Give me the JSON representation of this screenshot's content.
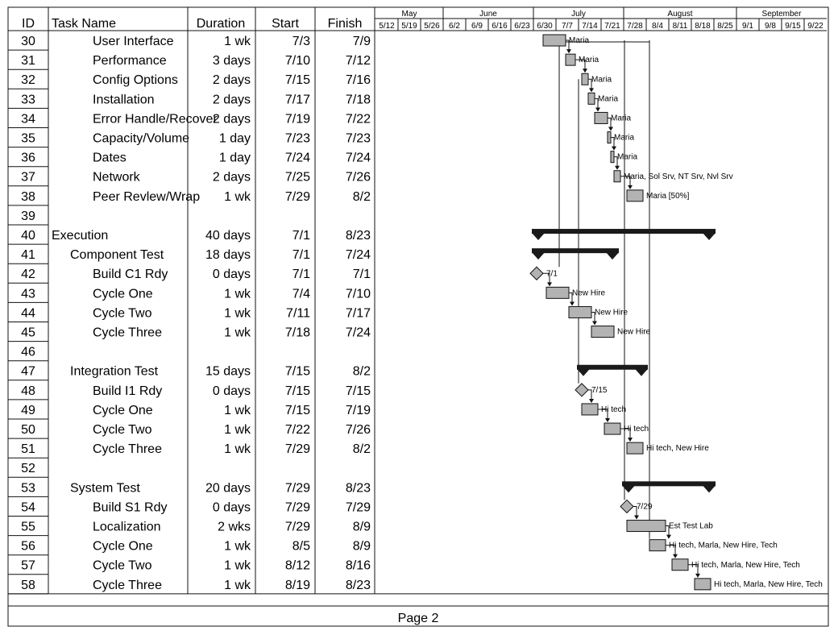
{
  "columns": {
    "id": "ID",
    "name": "Task Name",
    "duration": "Duration",
    "start": "Start",
    "finish": "Finish"
  },
  "timeline": {
    "months": [
      "May",
      "June",
      "July",
      "August",
      "September"
    ],
    "weeks": [
      "5/12",
      "5/19",
      "5/26",
      "6/2",
      "6/9",
      "6/16",
      "6/23",
      "6/30",
      "7/7",
      "7/14",
      "7/21",
      "7/28",
      "8/4",
      "8/11",
      "8/18",
      "8/25",
      "9/1",
      "9/8",
      "9/15",
      "9/22"
    ]
  },
  "tasks": [
    {
      "id": "30",
      "name": "User Interface",
      "level": 2,
      "duration": "1 wk",
      "start": "7/3",
      "finish": "7/9",
      "type": "task",
      "resources": "Maria"
    },
    {
      "id": "31",
      "name": "Performance",
      "level": 2,
      "duration": "3 days",
      "start": "7/10",
      "finish": "7/12",
      "type": "task",
      "resources": "Maria"
    },
    {
      "id": "32",
      "name": "Config Options",
      "level": 2,
      "duration": "2 days",
      "start": "7/15",
      "finish": "7/16",
      "type": "task",
      "resources": "Maria"
    },
    {
      "id": "33",
      "name": "Installation",
      "level": 2,
      "duration": "2 days",
      "start": "7/17",
      "finish": "7/18",
      "type": "task",
      "resources": "Maria"
    },
    {
      "id": "34",
      "name": "Error Handle/Recover",
      "level": 2,
      "duration": "2 days",
      "start": "7/19",
      "finish": "7/22",
      "type": "task",
      "resources": "Maria"
    },
    {
      "id": "35",
      "name": "Capacity/Volume",
      "level": 2,
      "duration": "1 day",
      "start": "7/23",
      "finish": "7/23",
      "type": "task",
      "resources": "Maria"
    },
    {
      "id": "36",
      "name": "Dates",
      "level": 2,
      "duration": "1 day",
      "start": "7/24",
      "finish": "7/24",
      "type": "task",
      "resources": "Maria"
    },
    {
      "id": "37",
      "name": "Network",
      "level": 2,
      "duration": "2 days",
      "start": "7/25",
      "finish": "7/26",
      "type": "task",
      "resources": "Maria, Sol Srv, NT Srv, Nvl Srv"
    },
    {
      "id": "38",
      "name": "Peer Revlew/Wrap",
      "level": 2,
      "duration": "1 wk",
      "start": "7/29",
      "finish": "8/2",
      "type": "task",
      "resources": "Maria [50%]"
    },
    {
      "id": "39",
      "name": "",
      "level": 0,
      "duration": "",
      "start": "",
      "finish": "",
      "type": "blank",
      "resources": ""
    },
    {
      "id": "40",
      "name": "Execution",
      "level": 0,
      "duration": "40 days",
      "start": "7/1",
      "finish": "8/23",
      "type": "summary",
      "resources": ""
    },
    {
      "id": "41",
      "name": "Component Test",
      "level": 1,
      "duration": "18 days",
      "start": "7/1",
      "finish": "7/24",
      "type": "summary",
      "resources": ""
    },
    {
      "id": "42",
      "name": "Build C1 Rdy",
      "level": 2,
      "duration": "0 days",
      "start": "7/1",
      "finish": "7/1",
      "type": "milestone",
      "resources": "7/1"
    },
    {
      "id": "43",
      "name": "Cycle One",
      "level": 2,
      "duration": "1 wk",
      "start": "7/4",
      "finish": "7/10",
      "type": "task",
      "resources": "New Hire"
    },
    {
      "id": "44",
      "name": "Cycle Two",
      "level": 2,
      "duration": "1 wk",
      "start": "7/11",
      "finish": "7/17",
      "type": "task",
      "resources": "New Hire"
    },
    {
      "id": "45",
      "name": "Cycle Three",
      "level": 2,
      "duration": "1 wk",
      "start": "7/18",
      "finish": "7/24",
      "type": "task",
      "resources": "New Hire"
    },
    {
      "id": "46",
      "name": "",
      "level": 0,
      "duration": "",
      "start": "",
      "finish": "",
      "type": "blank",
      "resources": ""
    },
    {
      "id": "47",
      "name": "Integration Test",
      "level": 1,
      "duration": "15 days",
      "start": "7/15",
      "finish": "8/2",
      "type": "summary",
      "resources": ""
    },
    {
      "id": "48",
      "name": "Build I1 Rdy",
      "level": 2,
      "duration": "0 days",
      "start": "7/15",
      "finish": "7/15",
      "type": "milestone",
      "resources": "7/15"
    },
    {
      "id": "49",
      "name": "Cycle One",
      "level": 2,
      "duration": "1 wk",
      "start": "7/15",
      "finish": "7/19",
      "type": "task",
      "resources": "Hi tech"
    },
    {
      "id": "50",
      "name": "Cycle Two",
      "level": 2,
      "duration": "1 wk",
      "start": "7/22",
      "finish": "7/26",
      "type": "task",
      "resources": "Hi tech"
    },
    {
      "id": "51",
      "name": "Cycle Three",
      "level": 2,
      "duration": "1 wk",
      "start": "7/29",
      "finish": "8/2",
      "type": "task",
      "resources": "Hi tech, New Hire"
    },
    {
      "id": "52",
      "name": "",
      "level": 0,
      "duration": "",
      "start": "",
      "finish": "",
      "type": "blank",
      "resources": ""
    },
    {
      "id": "53",
      "name": "System Test",
      "level": 1,
      "duration": "20 days",
      "start": "7/29",
      "finish": "8/23",
      "type": "summary",
      "resources": ""
    },
    {
      "id": "54",
      "name": "Build S1 Rdy",
      "level": 2,
      "duration": "0 days",
      "start": "7/29",
      "finish": "7/29",
      "type": "milestone",
      "resources": "7/29"
    },
    {
      "id": "55",
      "name": "Localization",
      "level": 2,
      "duration": "2 wks",
      "start": "7/29",
      "finish": "8/9",
      "type": "task",
      "resources": "Est Test Lab"
    },
    {
      "id": "56",
      "name": "Cycle One",
      "level": 2,
      "duration": "1 wk",
      "start": "8/5",
      "finish": "8/9",
      "type": "task",
      "resources": "Hi tech, Marla, New Hire, Tech"
    },
    {
      "id": "57",
      "name": "Cycle Two",
      "level": 2,
      "duration": "1 wk",
      "start": "8/12",
      "finish": "8/16",
      "type": "task",
      "resources": "Hi tech, Marla, New Hire, Tech"
    },
    {
      "id": "58",
      "name": "Cycle Three",
      "level": 2,
      "duration": "1 wk",
      "start": "8/19",
      "finish": "8/23",
      "type": "task",
      "resources": "Hi tech, Marla, New Hire, Tech"
    }
  ],
  "footer": {
    "page_label": "Page 2"
  },
  "colors": {
    "bar_fill": "#b3b3b3",
    "summary_fill": "#1a1a1a",
    "line": "#111111"
  }
}
